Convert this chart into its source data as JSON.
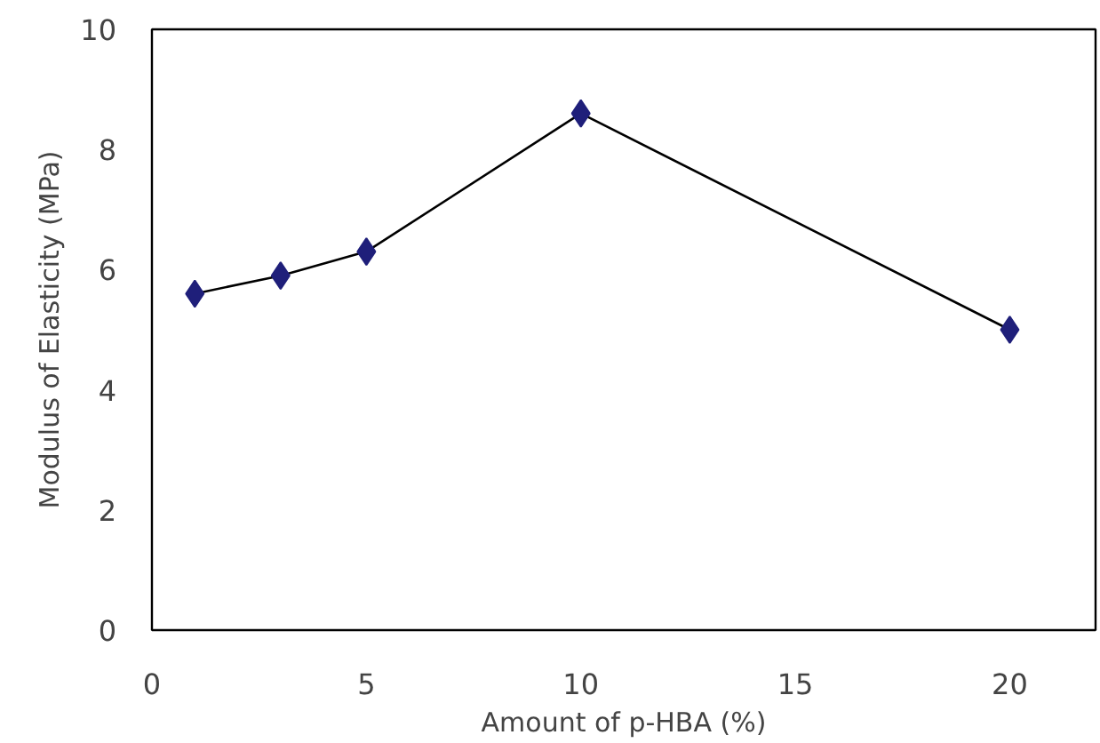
{
  "chart_data": {
    "type": "line",
    "xlabel": "Amount of p-HBA (%)",
    "ylabel": "Modulus of Elasticity (MPa)",
    "x": [
      1,
      3,
      5,
      10,
      20
    ],
    "series": [
      {
        "color": "#1f1f7a",
        "values": [
          5.6,
          5.9,
          6.3,
          8.6,
          5.0
        ]
      }
    ],
    "marker": "diamond",
    "xlim": [
      0,
      22
    ],
    "ylim": [
      0,
      10
    ],
    "xticks": [
      0,
      5,
      10,
      15,
      20
    ],
    "yticks": [
      0,
      2,
      4,
      6,
      8,
      10
    ],
    "grid": false
  }
}
